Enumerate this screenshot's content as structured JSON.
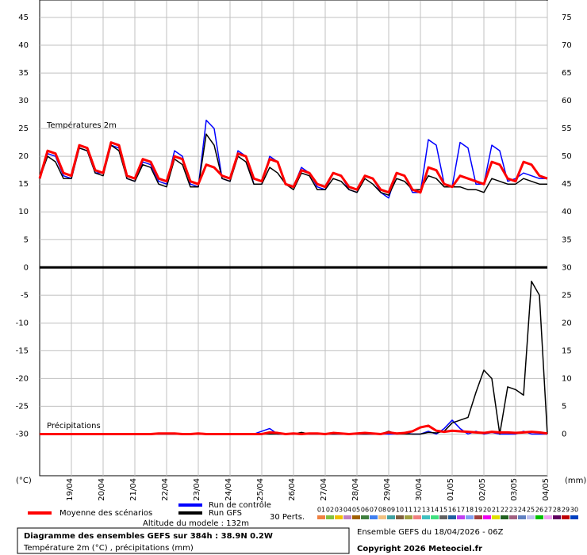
{
  "chart_data": {
    "type": "line",
    "temperature_label": "Températures 2m",
    "precipitation_label": "Précipitations",
    "y_unit": "(°C)",
    "y2_unit": "(mm)",
    "altitude": "Altitude du modele : 132m",
    "title": "Diagramme des ensembles GEFS sur 384h : 38.9N 0.2W",
    "subtitle": "Température 2m (°C) , précipitations (mm)",
    "run": "Ensemble GEFS du 18/04/2026 - 06Z",
    "copyright": "Copyright 2026 Meteociel.fr",
    "grid": true,
    "xlim": [
      0,
      384
    ],
    "ylim": [
      -37.5,
      48
    ],
    "y2lim": [
      -7.5,
      78
    ],
    "xticks": [
      {
        "value": 24,
        "label": "19/04"
      },
      {
        "value": 48,
        "label": "20/04"
      },
      {
        "value": 72,
        "label": "21/04"
      },
      {
        "value": 96,
        "label": "22/04"
      },
      {
        "value": 120,
        "label": "23/04"
      },
      {
        "value": 144,
        "label": "24/04"
      },
      {
        "value": 168,
        "label": "25/04"
      },
      {
        "value": 192,
        "label": "26/04"
      },
      {
        "value": 216,
        "label": "27/04"
      },
      {
        "value": 240,
        "label": "28/04"
      },
      {
        "value": 264,
        "label": "29/04"
      },
      {
        "value": 288,
        "label": "30/04"
      },
      {
        "value": 312,
        "label": "01/05"
      },
      {
        "value": 336,
        "label": "02/05"
      },
      {
        "value": 360,
        "label": "03/05"
      },
      {
        "value": 384,
        "label": "04/05"
      }
    ],
    "yticks": [
      45,
      40,
      35,
      30,
      25,
      20,
      15,
      10,
      5,
      0,
      -5,
      -10,
      -15,
      -20,
      -25,
      -30
    ],
    "y2ticks": [
      75,
      70,
      65,
      60,
      55,
      50,
      45,
      40,
      35,
      30,
      25,
      20,
      15,
      10,
      5,
      0
    ],
    "x": [
      0,
      6,
      12,
      18,
      24,
      30,
      36,
      42,
      48,
      54,
      60,
      66,
      72,
      78,
      84,
      90,
      96,
      102,
      108,
      114,
      120,
      126,
      132,
      138,
      144,
      150,
      156,
      162,
      168,
      174,
      180,
      186,
      192,
      198,
      204,
      210,
      216,
      222,
      228,
      234,
      240,
      246,
      252,
      258,
      264,
      270,
      276,
      282,
      288,
      294,
      300,
      306,
      312,
      318,
      324,
      330,
      336,
      342,
      348,
      354,
      360,
      366,
      372,
      378,
      384
    ],
    "series": [
      {
        "name": "Run de contrôle",
        "color": "#0000ff",
        "values": [
          16,
          20.5,
          20,
          16.5,
          16,
          21.5,
          21,
          17,
          17,
          22,
          21.5,
          16,
          15.5,
          19,
          18.5,
          15.5,
          15,
          21,
          20,
          15,
          14.5,
          26.5,
          25,
          16,
          15.5,
          21,
          20,
          15,
          15,
          20,
          19,
          15,
          14.5,
          18,
          17,
          14.5,
          14,
          17,
          16.5,
          14,
          13.5,
          16.5,
          16,
          13.5,
          12.5,
          17,
          16.5,
          13.5,
          13.5,
          23,
          22,
          15,
          14.5,
          22.5,
          21.5,
          15,
          15,
          22,
          21,
          15.5,
          16,
          17,
          16.5,
          16,
          16
        ],
        "precipitation": [
          0,
          0,
          0,
          0,
          0,
          0,
          0,
          0,
          0,
          0,
          0,
          0,
          0,
          0,
          0,
          0,
          0,
          0,
          0,
          0,
          0,
          0,
          0,
          0,
          0,
          0,
          0,
          0,
          0.5,
          1,
          0,
          0,
          0,
          0,
          0,
          0,
          0,
          0,
          0,
          0,
          0,
          0,
          0,
          0,
          0,
          0,
          0.2,
          0,
          0,
          0.5,
          0,
          1,
          2.5,
          1,
          0,
          0.5,
          0,
          0.3,
          0,
          0,
          0,
          0.5,
          0,
          0,
          0
        ]
      },
      {
        "name": "Run GFS",
        "color": "#000000",
        "values": [
          16,
          20,
          19,
          16,
          16,
          21.5,
          21,
          17,
          16.5,
          22,
          21,
          16,
          15.5,
          18.5,
          18,
          15,
          14.5,
          19.5,
          18.5,
          14.5,
          14.5,
          24,
          22,
          16,
          15.5,
          20,
          19,
          15,
          15,
          18,
          17,
          15,
          14,
          17,
          16.5,
          14,
          14,
          16,
          15.5,
          14,
          13.5,
          16,
          15,
          13.5,
          13,
          16,
          15.5,
          14,
          14,
          16.5,
          16,
          14.5,
          14.5,
          14.5,
          14,
          14,
          13.5,
          16,
          15.5,
          15,
          15,
          16,
          15.5,
          15,
          15
        ],
        "precipitation": [
          0,
          0,
          0,
          0,
          0,
          0,
          0,
          0,
          0,
          0,
          0,
          0,
          0,
          0,
          0,
          0,
          0,
          0,
          0,
          0,
          0,
          0,
          0,
          0,
          0,
          0,
          0,
          0,
          0,
          0,
          0,
          0,
          0,
          0.3,
          0,
          0,
          0,
          0,
          0,
          0,
          0,
          0,
          0,
          0,
          0.5,
          0,
          0,
          0,
          0,
          0.3,
          0.2,
          0.5,
          2,
          2.5,
          3,
          7.5,
          11.5,
          10,
          0,
          8.5,
          8,
          7,
          27.5,
          25,
          0
        ]
      },
      {
        "name": "Moyenne des scénarios",
        "color": "#ff0000",
        "values": [
          16,
          21,
          20.5,
          17,
          16.5,
          22,
          21.5,
          17.5,
          17,
          22.5,
          22,
          16.5,
          16,
          19.5,
          19,
          16,
          15.5,
          20,
          19.5,
          15.5,
          15,
          18.5,
          18,
          16.5,
          16,
          20.5,
          20,
          16,
          15.5,
          19.5,
          19,
          15,
          14.5,
          17.5,
          17,
          15,
          14.5,
          17,
          16.5,
          14.5,
          14,
          16.5,
          16,
          14,
          13.5,
          17,
          16.5,
          14,
          13.5,
          18,
          17.5,
          15,
          14.5,
          16.5,
          16,
          15.5,
          15,
          19,
          18.5,
          16,
          15.5,
          19,
          18.5,
          16.5,
          16
        ],
        "precipitation": [
          0,
          0,
          0,
          0,
          0,
          0,
          0,
          0,
          0,
          0,
          0,
          0,
          0,
          0,
          0,
          0.1,
          0.1,
          0.1,
          0,
          0,
          0.1,
          0,
          0,
          0,
          0,
          0,
          0,
          0,
          0,
          0.3,
          0.2,
          0,
          0.1,
          0,
          0.1,
          0.1,
          0,
          0.2,
          0.1,
          0,
          0.1,
          0.2,
          0.1,
          0,
          0.3,
          0.1,
          0.2,
          0.5,
          1.2,
          1.5,
          0.6,
          0.4,
          0.6,
          0.5,
          0.4,
          0.3,
          0.2,
          0.4,
          0.3,
          0.3,
          0.2,
          0.3,
          0.4,
          0.3,
          0.1
        ]
      }
    ],
    "perturbations": {
      "label": "30 Perts.",
      "members": [
        {
          "name": "01",
          "color": "#f08040"
        },
        {
          "name": "02",
          "color": "#80c040"
        },
        {
          "name": "03",
          "color": "#f0c000"
        },
        {
          "name": "04",
          "color": "#c080c0"
        },
        {
          "name": "05",
          "color": "#a06000"
        },
        {
          "name": "06",
          "color": "#408040"
        },
        {
          "name": "07",
          "color": "#4080f0"
        },
        {
          "name": "08",
          "color": "#f0c080"
        },
        {
          "name": "09",
          "color": "#40a0a0"
        },
        {
          "name": "10",
          "color": "#806040"
        },
        {
          "name": "11",
          "color": "#a0a040"
        },
        {
          "name": "12",
          "color": "#f08080"
        },
        {
          "name": "13",
          "color": "#40c0c0"
        },
        {
          "name": "14",
          "color": "#40e080"
        },
        {
          "name": "15",
          "color": "#606060"
        },
        {
          "name": "16",
          "color": "#2060a0"
        },
        {
          "name": "17",
          "color": "#c040f0"
        },
        {
          "name": "18",
          "color": "#80a0f0"
        },
        {
          "name": "19",
          "color": "#a04040"
        },
        {
          "name": "20",
          "color": "#f000f0"
        },
        {
          "name": "21",
          "color": "#e0e000"
        },
        {
          "name": "22",
          "color": "#206020"
        },
        {
          "name": "23",
          "color": "#a06080"
        },
        {
          "name": "24",
          "color": "#6080c0"
        },
        {
          "name": "25",
          "color": "#c0c0f0"
        },
        {
          "name": "26",
          "color": "#00c000"
        },
        {
          "name": "27",
          "color": "#f0a0f0"
        },
        {
          "name": "28",
          "color": "#600060"
        },
        {
          "name": "29",
          "color": "#c00000"
        },
        {
          "name": "30",
          "color": "#0040c0"
        }
      ]
    }
  }
}
